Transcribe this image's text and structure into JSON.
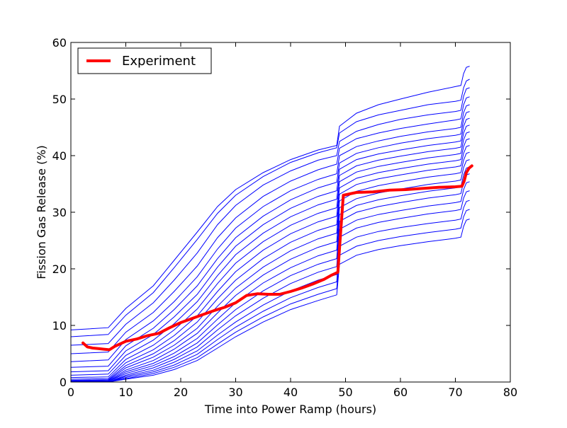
{
  "chart_data": {
    "type": "line",
    "xlabel": "Time into Power Ramp (hours)",
    "ylabel": "Fission Gas Release (%)",
    "xlim": [
      0,
      80
    ],
    "ylim": [
      0,
      60
    ],
    "xticks": [
      "0",
      "10",
      "20",
      "30",
      "40",
      "50",
      "60",
      "70",
      "80"
    ],
    "yticks": [
      "0",
      "10",
      "20",
      "30",
      "40",
      "50",
      "60"
    ],
    "grid": false,
    "legend": {
      "position": "top-left",
      "entries": [
        "Experiment"
      ]
    },
    "simulation_series": {
      "color": "#0000ff",
      "x": [
        0,
        6.8,
        10,
        15,
        18.8,
        23,
        26.7,
        30,
        35,
        40,
        45,
        48.4,
        48.9,
        52,
        56,
        60,
        65,
        70,
        71.0,
        71.5,
        72.0,
        72.6
      ],
      "curves": [
        [
          9.2,
          9.6,
          13.0,
          17.0,
          21.5,
          26.5,
          31.0,
          34.0,
          37.0,
          39.3,
          41.0,
          41.8,
          45.2,
          47.5,
          49.0,
          50.0,
          51.2,
          52.2,
          52.4,
          54.5,
          55.6,
          55.8
        ],
        [
          8.0,
          8.4,
          11.8,
          15.8,
          20.2,
          25.2,
          29.8,
          33.0,
          36.3,
          38.8,
          40.5,
          41.4,
          44.0,
          46.0,
          47.2,
          48.0,
          49.0,
          49.6,
          49.8,
          52.0,
          53.2,
          53.5
        ],
        [
          6.5,
          6.8,
          10.2,
          14.0,
          18.0,
          22.8,
          27.8,
          31.2,
          34.8,
          37.3,
          39.2,
          40.0,
          42.5,
          44.3,
          45.5,
          46.4,
          47.2,
          47.8,
          48.0,
          50.5,
          51.8,
          52.0
        ],
        [
          5.0,
          5.3,
          8.8,
          12.3,
          16.0,
          20.5,
          25.5,
          29.0,
          32.8,
          35.5,
          37.5,
          38.5,
          41.3,
          43.0,
          44.0,
          44.8,
          45.6,
          46.3,
          46.5,
          49.0,
          50.2,
          50.4
        ],
        [
          3.6,
          3.9,
          7.5,
          10.8,
          14.2,
          18.6,
          23.5,
          27.2,
          31.0,
          33.8,
          35.8,
          36.8,
          40.0,
          41.6,
          42.6,
          43.4,
          44.2,
          44.8,
          45.0,
          47.6,
          48.8,
          49.0
        ],
        [
          2.6,
          2.8,
          6.4,
          9.5,
          12.8,
          17.0,
          21.8,
          25.5,
          29.3,
          32.2,
          34.3,
          35.3,
          38.7,
          40.4,
          41.4,
          42.2,
          43.0,
          43.6,
          43.8,
          46.4,
          47.6,
          47.8
        ],
        [
          1.8,
          2.0,
          5.5,
          8.4,
          11.5,
          15.5,
          20.3,
          24.0,
          27.8,
          30.7,
          32.8,
          33.8,
          37.6,
          39.3,
          40.3,
          41.0,
          41.8,
          42.4,
          42.6,
          45.2,
          46.4,
          46.6
        ],
        [
          1.2,
          1.4,
          4.7,
          7.4,
          10.3,
          14.2,
          18.8,
          22.5,
          26.3,
          29.2,
          31.3,
          32.3,
          36.5,
          38.2,
          39.2,
          39.9,
          40.7,
          41.3,
          41.5,
          44.0,
          45.2,
          45.4
        ],
        [
          0.8,
          0.9,
          4.0,
          6.5,
          9.2,
          12.9,
          17.4,
          21.0,
          24.8,
          27.7,
          29.8,
          30.8,
          35.4,
          37.1,
          38.1,
          38.8,
          39.6,
          40.2,
          40.4,
          42.8,
          44.0,
          44.2
        ],
        [
          0.5,
          0.6,
          3.4,
          5.7,
          8.2,
          11.7,
          16.0,
          19.5,
          23.3,
          26.2,
          28.3,
          29.3,
          34.3,
          36.0,
          37.0,
          37.7,
          38.5,
          39.1,
          39.3,
          41.6,
          42.8,
          43.0
        ],
        [
          0.3,
          0.4,
          2.9,
          5.0,
          7.3,
          10.6,
          14.7,
          18.0,
          21.8,
          24.7,
          26.8,
          27.8,
          33.2,
          34.9,
          35.9,
          36.6,
          37.4,
          38.0,
          38.2,
          40.4,
          41.6,
          41.8
        ],
        [
          0.2,
          0.3,
          2.5,
          4.4,
          6.5,
          9.5,
          13.4,
          16.6,
          20.3,
          23.2,
          25.3,
          26.3,
          32.0,
          33.7,
          34.7,
          35.4,
          36.2,
          36.8,
          37.0,
          39.2,
          40.4,
          40.6
        ],
        [
          0.1,
          0.2,
          2.1,
          3.8,
          5.8,
          8.6,
          12.2,
          15.3,
          18.9,
          21.7,
          23.8,
          24.8,
          30.8,
          32.4,
          33.4,
          34.1,
          34.9,
          35.5,
          35.7,
          37.9,
          39.1,
          39.3
        ],
        [
          0.1,
          0.1,
          1.8,
          3.3,
          5.1,
          7.7,
          11.1,
          14.0,
          17.5,
          20.2,
          22.3,
          23.3,
          29.6,
          31.2,
          32.2,
          32.9,
          33.7,
          34.3,
          34.5,
          36.6,
          37.8,
          38.0
        ],
        [
          0.0,
          0.1,
          1.5,
          2.9,
          4.5,
          6.9,
          10.1,
          12.8,
          16.1,
          18.8,
          20.8,
          21.8,
          28.4,
          30.0,
          31.0,
          31.7,
          32.5,
          33.1,
          33.3,
          35.4,
          36.6,
          36.8
        ],
        [
          0.0,
          0.0,
          1.2,
          2.5,
          4.0,
          6.2,
          9.2,
          11.7,
          14.8,
          17.4,
          19.4,
          20.4,
          27.0,
          28.6,
          29.6,
          30.3,
          31.1,
          31.7,
          31.9,
          34.0,
          35.2,
          35.4
        ],
        [
          0.0,
          0.0,
          1.0,
          2.1,
          3.5,
          5.5,
          8.3,
          10.6,
          13.6,
          16.1,
          18.0,
          19.0,
          25.6,
          27.2,
          28.2,
          28.9,
          29.7,
          30.3,
          30.5,
          32.5,
          33.6,
          33.8
        ],
        [
          0.0,
          0.0,
          0.8,
          1.8,
          3.0,
          4.9,
          7.5,
          9.7,
          12.5,
          14.9,
          16.7,
          17.7,
          24.0,
          25.6,
          26.6,
          27.3,
          28.0,
          28.6,
          28.8,
          30.8,
          31.9,
          32.1
        ],
        [
          0.0,
          0.0,
          0.6,
          1.5,
          2.6,
          4.3,
          6.7,
          8.8,
          11.5,
          13.8,
          15.5,
          16.5,
          22.4,
          24.0,
          25.0,
          25.7,
          26.4,
          27.0,
          27.2,
          29.2,
          30.3,
          30.5
        ],
        [
          0.0,
          0.0,
          0.5,
          1.2,
          2.2,
          3.8,
          6.0,
          8.0,
          10.6,
          12.8,
          14.4,
          15.4,
          20.8,
          22.4,
          23.4,
          24.1,
          24.8,
          25.4,
          25.6,
          27.5,
          28.6,
          28.8
        ]
      ]
    },
    "experiment_series": {
      "name": "Experiment",
      "color": "#ff0000",
      "x": [
        2.2,
        3.0,
        4.0,
        5.0,
        6.0,
        7.0,
        8.0,
        10.0,
        12.0,
        14.0,
        16.0,
        18.0,
        20.0,
        22.0,
        24.0,
        26.0,
        28.0,
        30.0,
        32.0,
        34.0,
        36.0,
        38.0,
        40.0,
        42.0,
        44.0,
        46.0,
        47.5,
        48.6,
        49.0,
        49.6,
        52.0,
        55.0,
        58.0,
        61.0,
        64.0,
        67.0,
        70.0,
        71.2,
        71.6,
        72.0,
        72.5,
        73.0
      ],
      "y": [
        6.9,
        6.2,
        6.0,
        5.9,
        5.8,
        5.7,
        6.3,
        7.2,
        7.6,
        8.2,
        8.6,
        9.6,
        10.5,
        11.2,
        11.9,
        12.6,
        13.2,
        14.0,
        15.3,
        15.6,
        15.5,
        15.5,
        16.0,
        16.6,
        17.3,
        18.1,
        18.9,
        19.4,
        25.0,
        33.0,
        33.5,
        33.6,
        33.9,
        34.0,
        34.2,
        34.4,
        34.5,
        34.6,
        35.5,
        37.0,
        37.8,
        38.2
      ]
    }
  }
}
